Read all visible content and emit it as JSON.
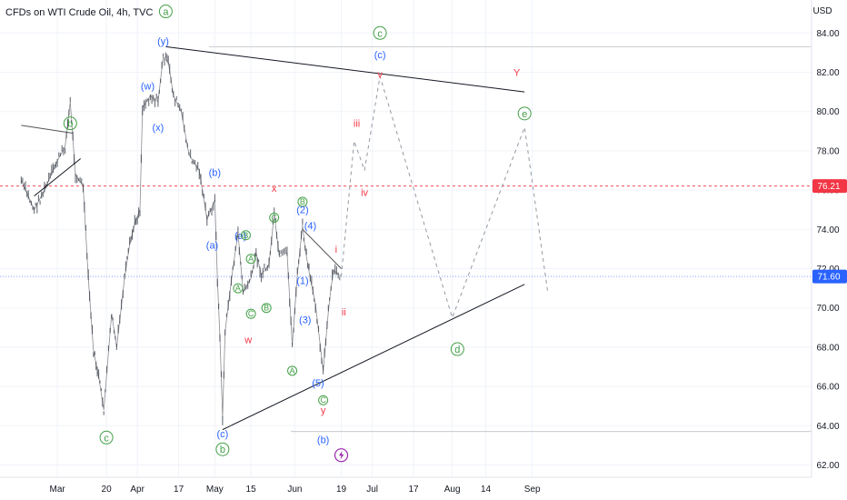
{
  "header": {
    "title": "CFDs on WTI Crude Oil, 4h, TVC"
  },
  "chart_data": {
    "type": "line",
    "title": "CFDs on WTI Crude Oil, 4h, TVC",
    "currency": "USD",
    "ylim": [
      61.3,
      85.2
    ],
    "y_ticks": [
      "84.00",
      "82.00",
      "80.00",
      "78.00",
      "76.00",
      "74.00",
      "72.00",
      "70.00",
      "68.00",
      "66.00",
      "64.00",
      "62.00"
    ],
    "x_ticks": [
      "Mar",
      "20",
      "Apr",
      "17",
      "May",
      "15",
      "Jun",
      "19",
      "Jul",
      "17",
      "Aug",
      "14",
      "Sep"
    ],
    "price_tags": [
      {
        "value": 76.21,
        "label": "76.21",
        "color": "#f23645"
      },
      {
        "value": 71.6,
        "label": "71.60",
        "color": "#2962ff"
      }
    ],
    "price_path": [
      [
        "2023-02-15",
        76.5
      ],
      [
        "2023-02-20",
        75.0
      ],
      [
        "2023-02-24",
        76.0
      ],
      [
        "2023-03-01",
        77.5
      ],
      [
        "2023-03-04",
        78.2
      ],
      [
        "2023-03-06",
        80.5
      ],
      [
        "2023-03-08",
        76.8
      ],
      [
        "2023-03-11",
        76.2
      ],
      [
        "2023-03-13",
        71.5
      ],
      [
        "2023-03-15",
        67.8
      ],
      [
        "2023-03-17",
        66.5
      ],
      [
        "2023-03-19",
        64.8
      ],
      [
        "2023-03-22",
        69.7
      ],
      [
        "2023-03-24",
        68.0
      ],
      [
        "2023-03-27",
        71.5
      ],
      [
        "2023-03-29",
        73.2
      ],
      [
        "2023-03-31",
        74.3
      ],
      [
        "2023-04-02",
        75.0
      ],
      [
        "2023-04-03",
        80.2
      ],
      [
        "2023-04-06",
        80.8
      ],
      [
        "2023-04-09",
        80.5
      ],
      [
        "2023-04-11",
        82.8
      ],
      [
        "2023-04-13",
        82.5
      ],
      [
        "2023-04-15",
        80.8
      ],
      [
        "2023-04-18",
        80.0
      ],
      [
        "2023-04-21",
        77.8
      ],
      [
        "2023-04-25",
        77.0
      ],
      [
        "2023-04-28",
        74.5
      ],
      [
        "2023-05-01",
        75.5
      ],
      [
        "2023-05-02",
        71.5
      ],
      [
        "2023-05-03",
        68.5
      ],
      [
        "2023-05-04",
        64.4
      ],
      [
        "2023-05-05",
        68.8
      ],
      [
        "2023-05-08",
        72.0
      ],
      [
        "2023-05-10",
        73.8
      ],
      [
        "2023-05-12",
        70.8
      ],
      [
        "2023-05-15",
        71.5
      ],
      [
        "2023-05-17",
        72.8
      ],
      [
        "2023-05-19",
        71.7
      ],
      [
        "2023-05-22",
        72.2
      ],
      [
        "2023-05-24",
        74.8
      ],
      [
        "2023-05-26",
        72.6
      ],
      [
        "2023-05-29",
        72.8
      ],
      [
        "2023-05-31",
        68.1
      ],
      [
        "2023-06-02",
        71.7
      ],
      [
        "2023-06-04",
        74.2
      ],
      [
        "2023-06-05",
        73.0
      ],
      [
        "2023-06-07",
        71.5
      ],
      [
        "2023-06-09",
        70.2
      ],
      [
        "2023-06-12",
        66.8
      ],
      [
        "2023-06-14",
        69.8
      ],
      [
        "2023-06-15",
        71.0
      ],
      [
        "2023-06-16",
        71.9
      ],
      [
        "2023-06-19",
        71.6
      ]
    ],
    "trendlines": [
      {
        "name": "upper-triangle-line",
        "points": [
          [
            "2023-04-12",
            83.3
          ],
          [
            "2023-08-29",
            81.0
          ]
        ],
        "color": "#131722"
      },
      {
        "name": "lower-triangle-line",
        "points": [
          [
            "2023-05-04",
            63.8
          ],
          [
            "2023-08-29",
            71.2
          ]
        ],
        "color": "#131722"
      },
      {
        "name": "early-upper-line",
        "points": [
          [
            "2023-02-15",
            79.3
          ],
          [
            "2023-03-07",
            78.9
          ]
        ],
        "color": "#555555"
      },
      {
        "name": "early-lower-line",
        "points": [
          [
            "2023-02-20",
            75.7
          ],
          [
            "2023-03-10",
            77.6
          ]
        ],
        "color": "#131722"
      },
      {
        "name": "june-wedge-line",
        "points": [
          [
            "2023-06-04",
            74.0
          ],
          [
            "2023-06-19",
            72.0
          ]
        ],
        "color": "#555555"
      }
    ],
    "projection_path": [
      [
        "2023-06-19",
        71.6
      ],
      [
        "2023-06-24",
        78.5
      ],
      [
        "2023-06-28",
        77.0
      ],
      [
        "2023-07-04",
        81.8
      ],
      [
        "2023-08-01",
        69.5
      ],
      [
        "2023-08-29",
        79.2
      ],
      [
        "2023-09-07",
        70.8
      ]
    ],
    "annotations": [
      {
        "text": "a",
        "date": "2023-04-12",
        "price": 85.1,
        "color": "#43a047",
        "circled": true
      },
      {
        "text": "(y)",
        "date": "2023-04-11",
        "price": 83.6,
        "color": "#2962ff"
      },
      {
        "text": "(w)",
        "date": "2023-04-05",
        "price": 81.3,
        "color": "#2962ff"
      },
      {
        "text": "(x)",
        "date": "2023-04-09",
        "price": 79.2,
        "color": "#2962ff"
      },
      {
        "text": "b",
        "date": "2023-03-06",
        "price": 79.4,
        "color": "#43a047",
        "circled": true
      },
      {
        "text": "c",
        "date": "2023-03-20",
        "price": 63.4,
        "color": "#43a047",
        "circled": true
      },
      {
        "text": "(b)",
        "date": "2023-05-01",
        "price": 76.9,
        "color": "#2962ff"
      },
      {
        "text": "(a)",
        "date": "2023-04-30",
        "price": 73.2,
        "color": "#2962ff"
      },
      {
        "text": "(c)",
        "date": "2023-05-04",
        "price": 63.6,
        "color": "#2962ff"
      },
      {
        "text": "b",
        "date": "2023-05-04",
        "price": 62.8,
        "color": "#43a047",
        "circled": true
      },
      {
        "text": "(a)",
        "date": "2023-05-11",
        "price": 73.7,
        "color": "#2962ff"
      },
      {
        "text": "B",
        "date": "2023-05-13",
        "price": 73.7,
        "color": "#43a047",
        "circled": true
      },
      {
        "text": "A",
        "date": "2023-05-10",
        "price": 71.0,
        "color": "#43a047",
        "circled": true
      },
      {
        "text": "A",
        "date": "2023-05-15",
        "price": 72.5,
        "color": "#43a047",
        "circled": true
      },
      {
        "text": "C",
        "date": "2023-05-15",
        "price": 69.7,
        "color": "#43a047",
        "circled": true
      },
      {
        "text": "B",
        "date": "2023-05-21",
        "price": 70.0,
        "color": "#43a047",
        "circled": true
      },
      {
        "text": "w",
        "date": "2023-05-14",
        "price": 68.4,
        "color": "#f23645"
      },
      {
        "text": "x",
        "date": "2023-05-24",
        "price": 76.1,
        "color": "#f23645"
      },
      {
        "text": "C",
        "date": "2023-05-24",
        "price": 74.6,
        "color": "#43a047",
        "circled": true
      },
      {
        "text": "A",
        "date": "2023-05-31",
        "price": 66.8,
        "color": "#43a047",
        "circled": true
      },
      {
        "text": "B",
        "date": "2023-06-04",
        "price": 75.4,
        "color": "#43a047",
        "circled": true
      },
      {
        "text": "(2)",
        "date": "2023-06-04",
        "price": 75.0,
        "color": "#2962ff"
      },
      {
        "text": "(1)",
        "date": "2023-06-04",
        "price": 71.4,
        "color": "#2962ff"
      },
      {
        "text": "(3)",
        "date": "2023-06-05",
        "price": 69.4,
        "color": "#2962ff"
      },
      {
        "text": "(4)",
        "date": "2023-06-07",
        "price": 74.2,
        "color": "#2962ff"
      },
      {
        "text": "(5)",
        "date": "2023-06-10",
        "price": 66.2,
        "color": "#2962ff"
      },
      {
        "text": "C",
        "date": "2023-06-12",
        "price": 65.3,
        "color": "#43a047",
        "circled": true
      },
      {
        "text": "y",
        "date": "2023-06-12",
        "price": 64.8,
        "color": "#f23645"
      },
      {
        "text": "(b)",
        "date": "2023-06-12",
        "price": 63.3,
        "color": "#2962ff"
      },
      {
        "text": "i",
        "date": "2023-06-17",
        "price": 73.0,
        "color": "#f23645"
      },
      {
        "text": "ii",
        "date": "2023-06-20",
        "price": 69.8,
        "color": "#f23645"
      },
      {
        "text": "iii",
        "date": "2023-06-25",
        "price": 79.4,
        "color": "#f23645"
      },
      {
        "text": "iv",
        "date": "2023-06-28",
        "price": 75.9,
        "color": "#f23645"
      },
      {
        "text": "c",
        "date": "2023-07-04",
        "price": 84.0,
        "color": "#43a047",
        "circled": true
      },
      {
        "text": "(c)",
        "date": "2023-07-04",
        "price": 82.9,
        "color": "#2962ff"
      },
      {
        "text": "v",
        "date": "2023-07-04",
        "price": 81.9,
        "color": "#f23645"
      },
      {
        "text": "Y",
        "date": "2023-08-26",
        "price": 82.0,
        "color": "#f23645"
      },
      {
        "text": "e",
        "date": "2023-08-29",
        "price": 79.9,
        "color": "#43a047",
        "circled": true
      },
      {
        "text": "d",
        "date": "2023-08-03",
        "price": 67.9,
        "color": "#43a047",
        "circled": true
      }
    ],
    "event_marker": {
      "name": "lightning-icon",
      "date": "2023-06-19",
      "price": 62.5,
      "color": "#9c27b0"
    }
  }
}
